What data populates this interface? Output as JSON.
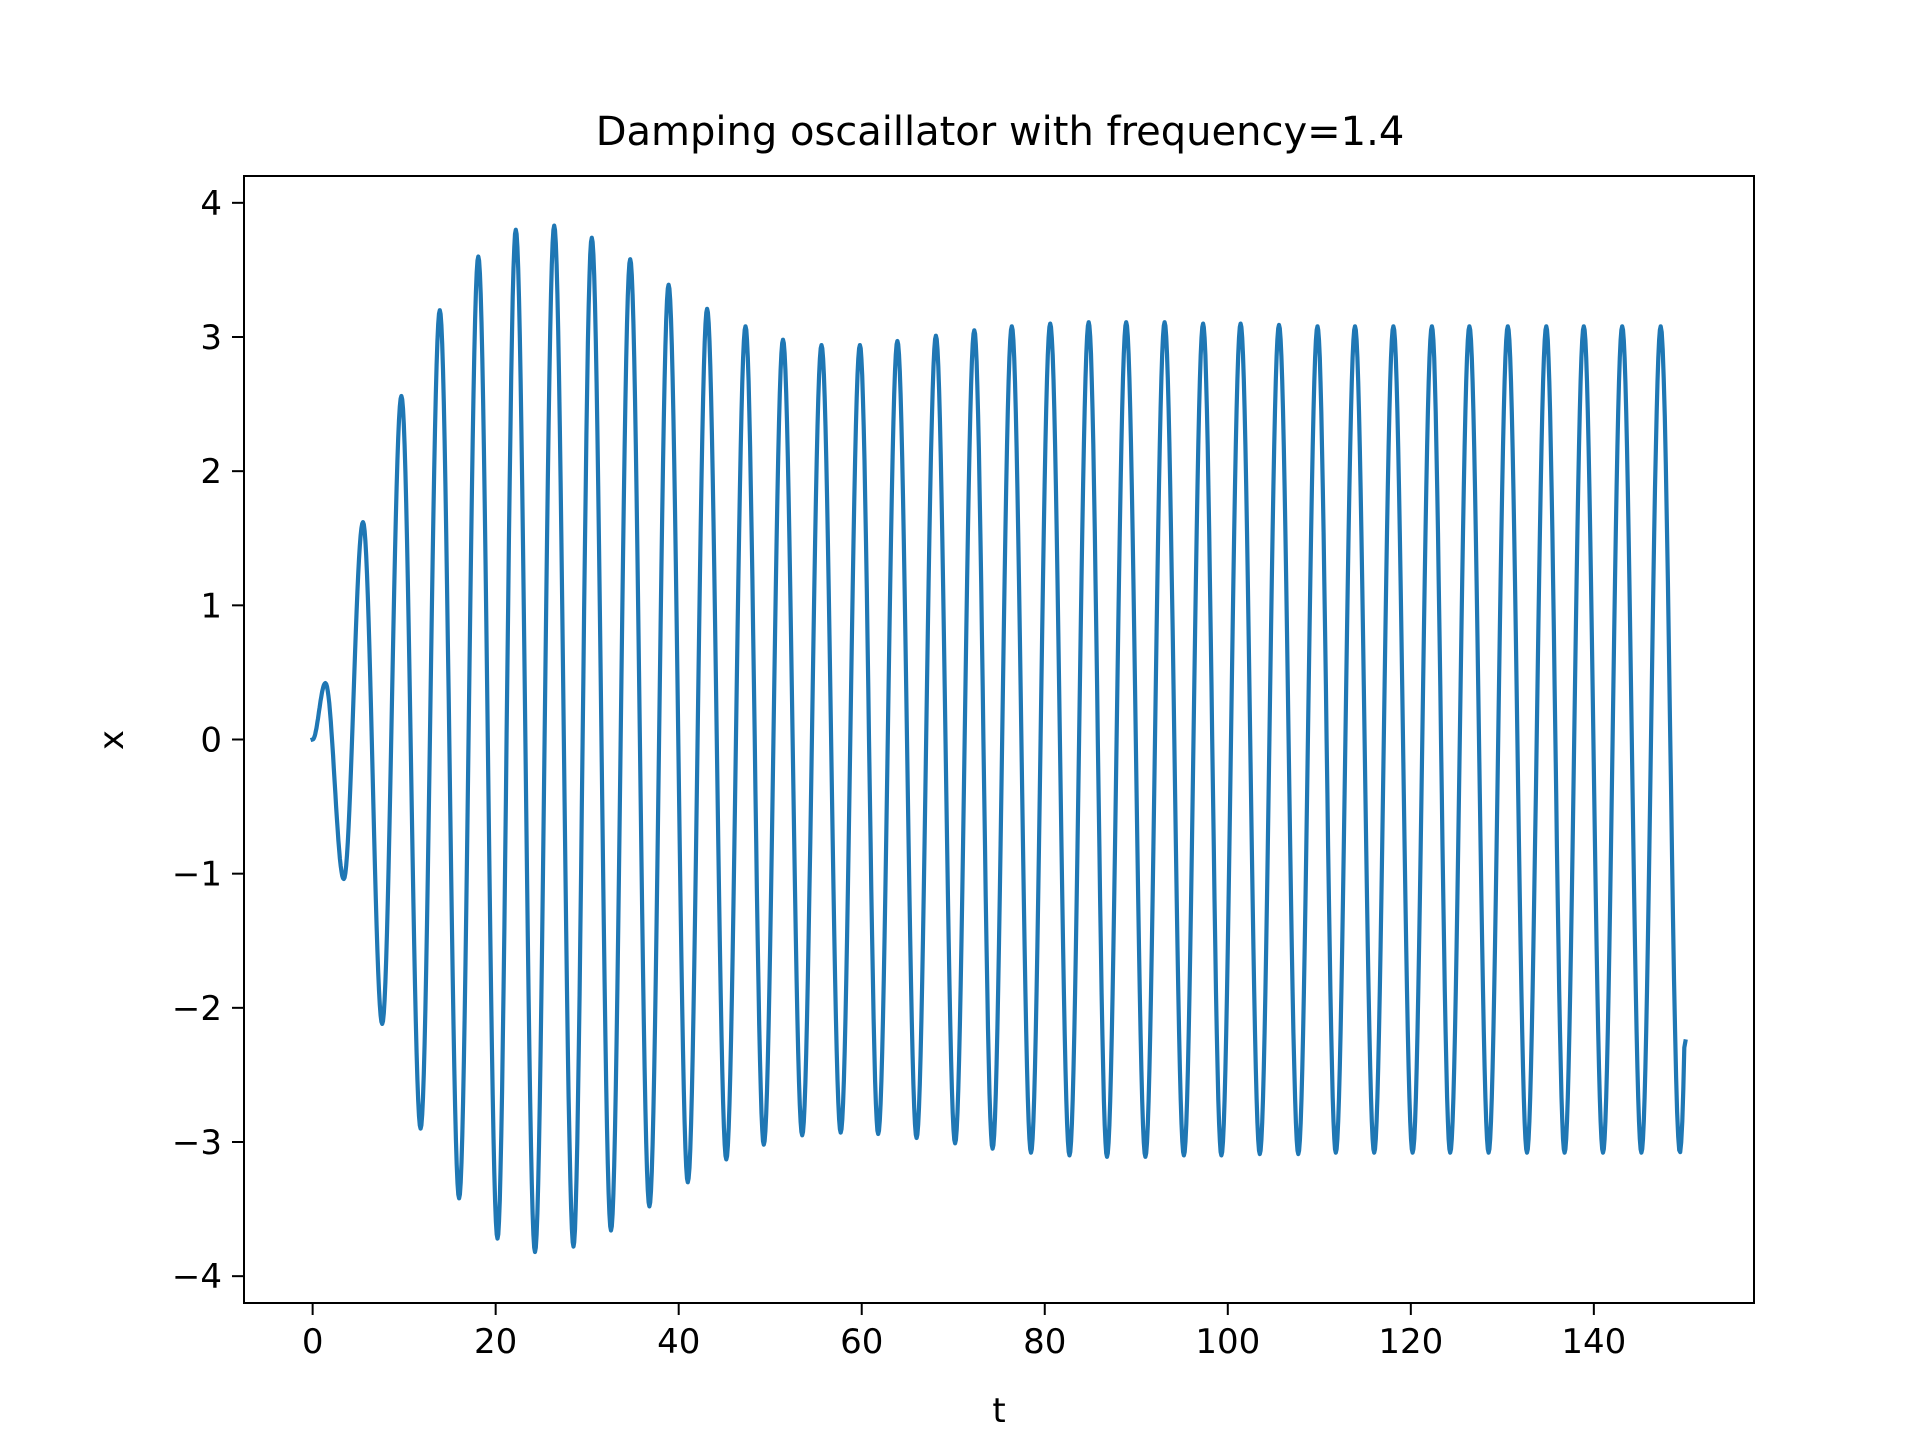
{
  "chart_data": {
    "type": "line",
    "title": "Damping oscaillator with frequency=1.4",
    "xlabel": "t",
    "ylabel": "x",
    "xlim": [
      -7.5,
      157.5
    ],
    "ylim": [
      -4.2,
      4.2
    ],
    "xticks": [
      0,
      20,
      40,
      60,
      80,
      100,
      120,
      140
    ],
    "xtick_labels": [
      "0",
      "20",
      "40",
      "60",
      "80",
      "100",
      "120",
      "140"
    ],
    "yticks": [
      -4,
      -3,
      -2,
      -1,
      0,
      1,
      2,
      3,
      4
    ],
    "ytick_labels": [
      "−4",
      "−3",
      "−2",
      "−1",
      "0",
      "1",
      "2",
      "3",
      "4"
    ],
    "grid": false,
    "line_color": "#1f77b4",
    "series": [
      {
        "t_range": [
          0,
          150
        ],
        "end_value": -2.25,
        "peaks": [
          {
            "t": 1.4,
            "x": 0.42
          },
          {
            "t": 5.5,
            "x": 1.62
          },
          {
            "t": 9.7,
            "x": 2.56
          },
          {
            "t": 13.9,
            "x": 3.2
          },
          {
            "t": 18.1,
            "x": 3.6
          },
          {
            "t": 22.2,
            "x": 3.8
          },
          {
            "t": 26.4,
            "x": 3.83
          },
          {
            "t": 30.5,
            "x": 3.74
          },
          {
            "t": 34.7,
            "x": 3.58
          },
          {
            "t": 38.9,
            "x": 3.39
          },
          {
            "t": 43.1,
            "x": 3.21
          },
          {
            "t": 47.3,
            "x": 3.08
          },
          {
            "t": 51.4,
            "x": 2.98
          },
          {
            "t": 55.6,
            "x": 2.94
          },
          {
            "t": 59.8,
            "x": 2.94
          },
          {
            "t": 63.9,
            "x": 2.97
          },
          {
            "t": 68.1,
            "x": 3.01
          },
          {
            "t": 72.3,
            "x": 3.05
          },
          {
            "t": 76.4,
            "x": 3.08
          },
          {
            "t": 80.6,
            "x": 3.1
          },
          {
            "t": 84.8,
            "x": 3.11
          },
          {
            "t": 88.9,
            "x": 3.11
          },
          {
            "t": 93.1,
            "x": 3.11
          },
          {
            "t": 97.3,
            "x": 3.1
          },
          {
            "t": 101.4,
            "x": 3.1
          },
          {
            "t": 105.6,
            "x": 3.09
          },
          {
            "t": 109.8,
            "x": 3.08
          },
          {
            "t": 113.9,
            "x": 3.08
          },
          {
            "t": 118.1,
            "x": 3.08
          },
          {
            "t": 122.3,
            "x": 3.08
          },
          {
            "t": 126.4,
            "x": 3.08
          },
          {
            "t": 130.6,
            "x": 3.08
          },
          {
            "t": 134.8,
            "x": 3.08
          },
          {
            "t": 138.9,
            "x": 3.08
          },
          {
            "t": 143.1,
            "x": 3.08
          },
          {
            "t": 147.3,
            "x": 3.08
          }
        ],
        "troughs": [
          {
            "t": 3.4,
            "x": -1.04
          },
          {
            "t": 7.6,
            "x": -2.12
          },
          {
            "t": 11.8,
            "x": -2.9
          },
          {
            "t": 16.0,
            "x": -3.42
          },
          {
            "t": 20.2,
            "x": -3.72
          },
          {
            "t": 24.3,
            "x": -3.82
          },
          {
            "t": 28.5,
            "x": -3.78
          },
          {
            "t": 32.6,
            "x": -3.66
          },
          {
            "t": 36.8,
            "x": -3.48
          },
          {
            "t": 41.0,
            "x": -3.3
          },
          {
            "t": 45.2,
            "x": -3.13
          },
          {
            "t": 49.3,
            "x": -3.02
          },
          {
            "t": 53.5,
            "x": -2.95
          },
          {
            "t": 57.7,
            "x": -2.93
          },
          {
            "t": 61.8,
            "x": -2.94
          },
          {
            "t": 66.0,
            "x": -2.97
          },
          {
            "t": 70.2,
            "x": -3.01
          },
          {
            "t": 74.3,
            "x": -3.05
          },
          {
            "t": 78.5,
            "x": -3.08
          },
          {
            "t": 82.7,
            "x": -3.1
          },
          {
            "t": 86.8,
            "x": -3.11
          },
          {
            "t": 91.0,
            "x": -3.11
          },
          {
            "t": 95.2,
            "x": -3.1
          },
          {
            "t": 99.3,
            "x": -3.1
          },
          {
            "t": 103.5,
            "x": -3.09
          },
          {
            "t": 107.7,
            "x": -3.09
          },
          {
            "t": 111.8,
            "x": -3.08
          },
          {
            "t": 116.0,
            "x": -3.08
          },
          {
            "t": 120.2,
            "x": -3.08
          },
          {
            "t": 124.3,
            "x": -3.08
          },
          {
            "t": 128.5,
            "x": -3.08
          },
          {
            "t": 132.7,
            "x": -3.08
          },
          {
            "t": 136.8,
            "x": -3.08
          },
          {
            "t": 141.0,
            "x": -3.08
          },
          {
            "t": 145.2,
            "x": -3.08
          }
        ]
      }
    ]
  }
}
